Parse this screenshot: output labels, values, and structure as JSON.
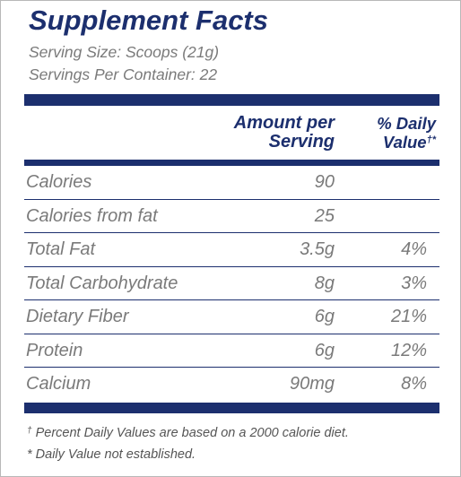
{
  "label": {
    "title": "Supplement Facts",
    "serving_size": "Serving Size: Scoops (21g)",
    "servings_per_container": "Servings Per Container: 22",
    "header": {
      "amount_line1": "Amount per",
      "amount_line2": "Serving",
      "daily_line1": "% Daily",
      "daily_line2": "Value",
      "daily_marks": "†*"
    },
    "rows": [
      {
        "name": "Calories",
        "amount": "90",
        "daily_value": ""
      },
      {
        "name": "Calories from fat",
        "amount": "25",
        "daily_value": ""
      },
      {
        "name": "Total Fat",
        "amount": "3.5g",
        "daily_value": "4%"
      },
      {
        "name": "Total Carbohydrate",
        "amount": "8g",
        "daily_value": "3%"
      },
      {
        "name": "Dietary Fiber",
        "amount": "6g",
        "daily_value": "21%"
      },
      {
        "name": "Protein",
        "amount": "6g",
        "daily_value": "12%"
      },
      {
        "name": "Calcium",
        "amount": "90mg",
        "daily_value": "8%"
      }
    ],
    "footnotes": {
      "dagger_mark": "†",
      "dagger_text": " Percent Daily Values are based on a 2000 calorie diet.",
      "asterisk_text": "* Daily Value not established."
    }
  },
  "colors": {
    "navy": "#1c2f6e",
    "text_gray": "#7a7a7a",
    "footnote_gray": "#555555"
  }
}
